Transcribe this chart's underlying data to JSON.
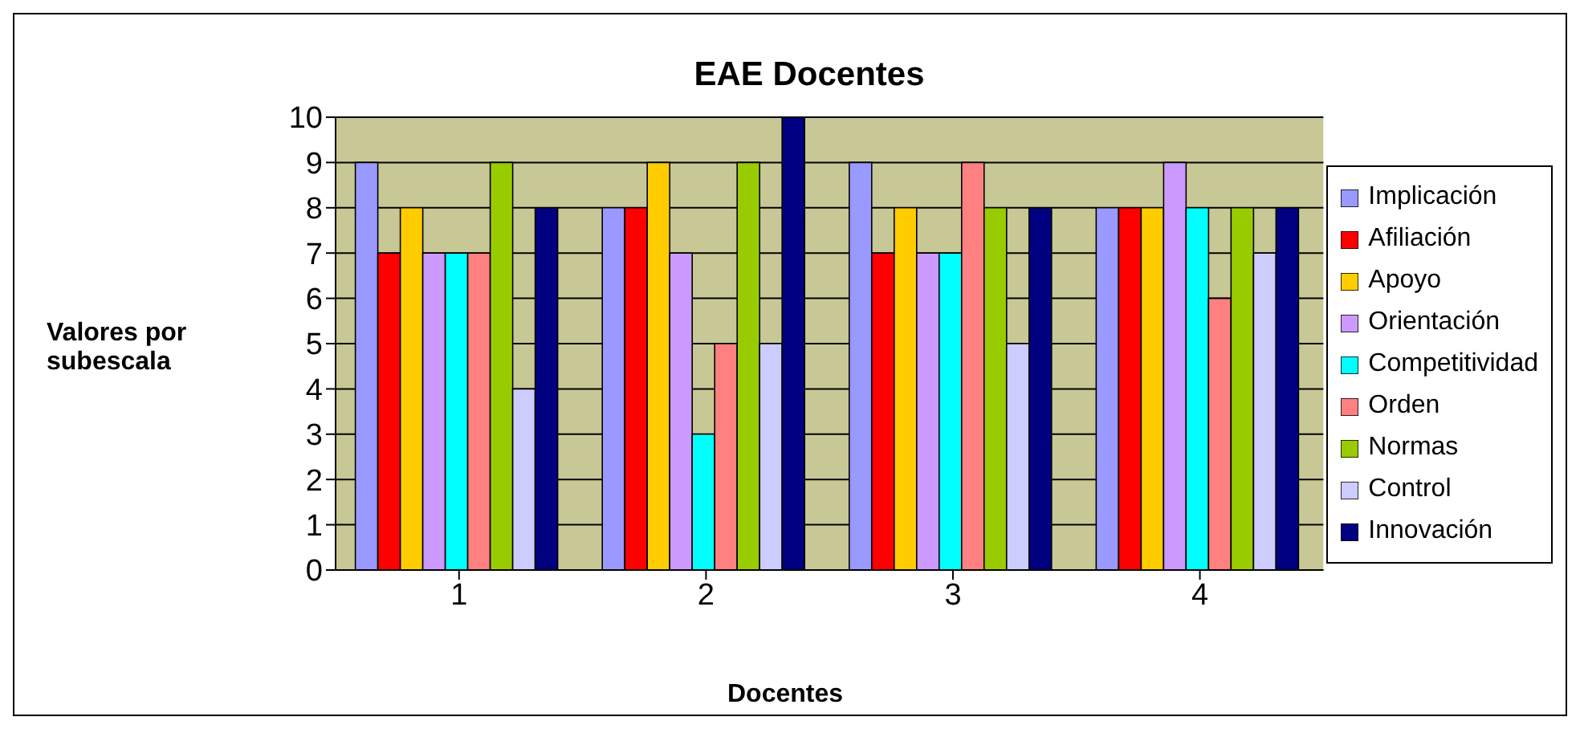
{
  "chart_data": {
    "type": "bar",
    "title": "EAE Docentes",
    "xlabel": "Docentes",
    "ylabel": "Valores por subescala",
    "categories": [
      "1",
      "2",
      "3",
      "4"
    ],
    "series": [
      {
        "name": "Implicación",
        "color": "#9999ff",
        "values": [
          9,
          8,
          9,
          8
        ]
      },
      {
        "name": "Afiliación",
        "color": "#ff0000",
        "values": [
          7,
          8,
          7,
          8
        ]
      },
      {
        "name": "Apoyo",
        "color": "#ffcc00",
        "values": [
          8,
          9,
          8,
          8
        ]
      },
      {
        "name": "Orientación",
        "color": "#cc99ff",
        "values": [
          7,
          7,
          7,
          9
        ]
      },
      {
        "name": "Competitividad",
        "color": "#00ffff",
        "values": [
          7,
          3,
          7,
          8
        ]
      },
      {
        "name": "Orden",
        "color": "#ff8080",
        "values": [
          7,
          5,
          9,
          6
        ]
      },
      {
        "name": "Normas",
        "color": "#99cc00",
        "values": [
          9,
          9,
          8,
          8
        ]
      },
      {
        "name": "Control",
        "color": "#ccccff",
        "values": [
          4,
          5,
          5,
          7
        ]
      },
      {
        "name": "Innovación",
        "color": "#000080",
        "values": [
          8,
          10,
          8,
          8
        ]
      }
    ],
    "ylim": [
      0,
      10
    ],
    "yticks": [
      0,
      1,
      2,
      3,
      4,
      5,
      6,
      7,
      8,
      9,
      10
    ],
    "grid": "y",
    "legend": "right"
  }
}
